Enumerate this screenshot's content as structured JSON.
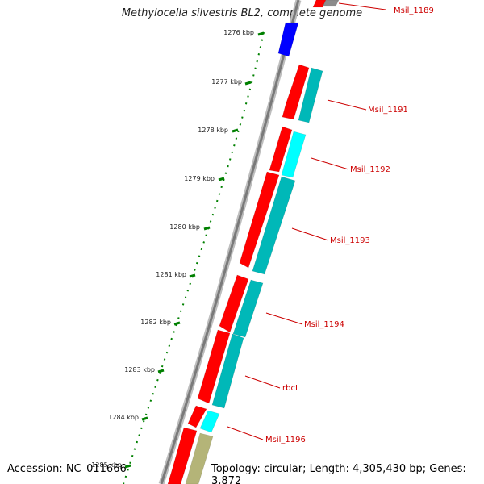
{
  "title": "Methylocella silvestris BL2, complete genome",
  "footer": {
    "accession": "Accession: NC_011666",
    "topology": "Topology: circular; Length: 4,305,430 bp; Genes: 3,872"
  },
  "ticks": [
    "1276 kbp",
    "1277 kbp",
    "1278 kbp",
    "1279 kbp",
    "1280 kbp",
    "1281 kbp",
    "1282 kbp",
    "1283 kbp",
    "1284 kbp",
    "1285 kbp"
  ],
  "genes": [
    {
      "label": "Msil_1189"
    },
    {
      "label": "Msil_1191"
    },
    {
      "label": "Msil_1192"
    },
    {
      "label": "Msil_1193"
    },
    {
      "label": "Msil_1194"
    },
    {
      "label": "rbcL"
    },
    {
      "label": "Msil_1196"
    }
  ],
  "colors": {
    "cds_forward": "#ff0000",
    "cds_partner": "#00b8b8",
    "cds_partner_light": "#00ffff",
    "other_feature": "#0000ff",
    "olive_feature": "#b4b478",
    "backbone": "#8c8c8c",
    "ticks": "#008000",
    "label": "#cc0000"
  }
}
